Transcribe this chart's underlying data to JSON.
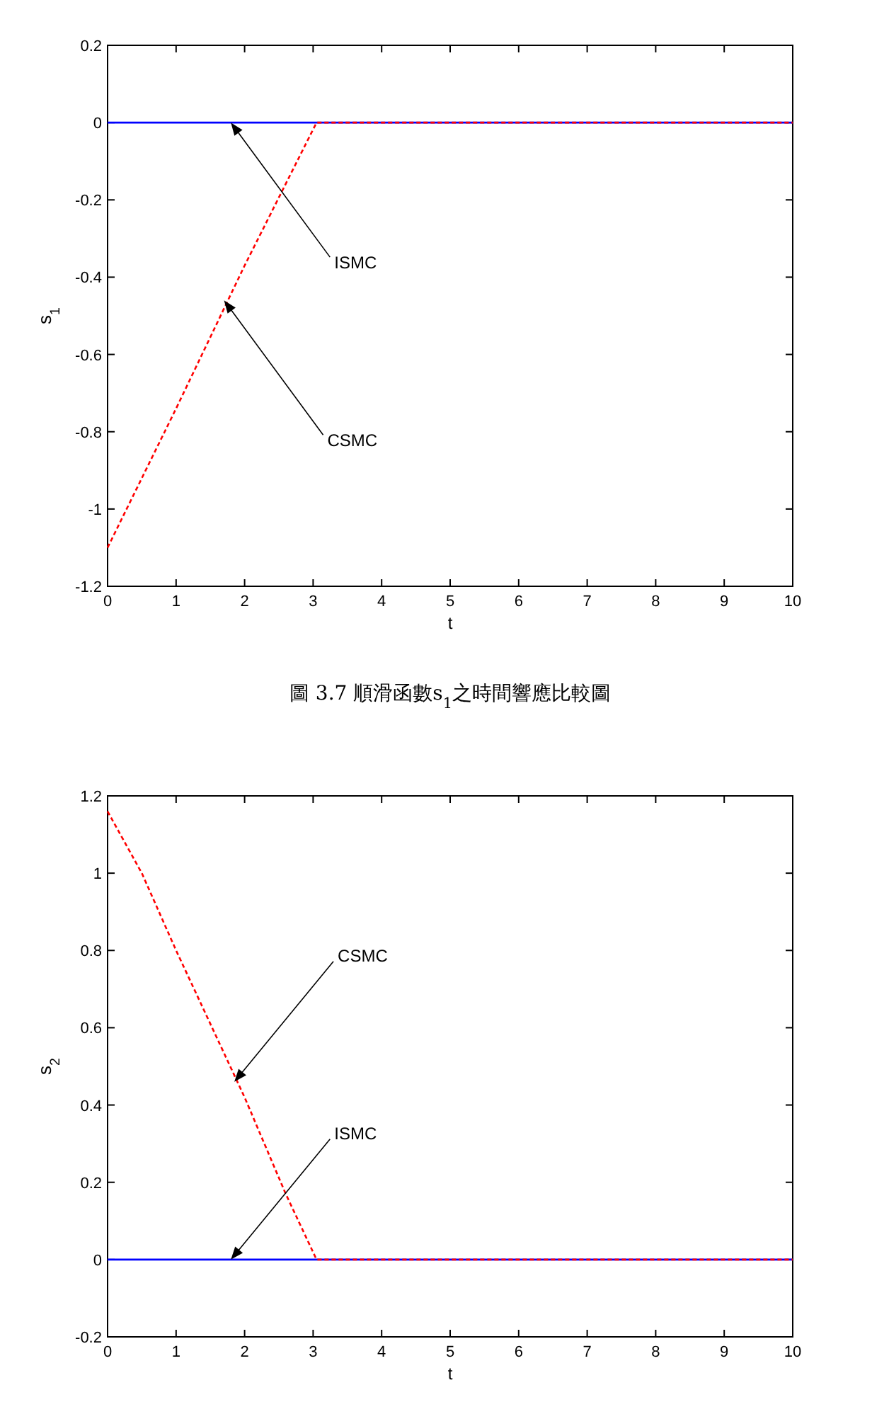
{
  "chart_data": [
    {
      "type": "line",
      "xlabel": "t",
      "ylabel": "s$_{1}$",
      "xlim": [
        0,
        10
      ],
      "ylim": [
        -1.2,
        0.2
      ],
      "xticks": [
        0,
        1,
        2,
        3,
        4,
        5,
        6,
        7,
        8,
        9,
        10
      ],
      "yticks": [
        0.2,
        0,
        -0.2,
        -0.4,
        -0.6,
        -0.8,
        -1,
        -1.2
      ],
      "series": [
        {
          "color": "#ff0000",
          "line_style": "dashed",
          "x": [
            0,
            1,
            2,
            3.05,
            10
          ],
          "values": [
            -1.1,
            -0.74,
            -0.37,
            0,
            0
          ]
        },
        {
          "color": "#0000ff",
          "line_style": "solid",
          "x": [
            0,
            10
          ],
          "values": [
            0,
            0
          ]
        }
      ],
      "annotations": [
        {
          "text": "ISMC",
          "x": 1.8,
          "y": 0
        },
        {
          "text": "CSMC",
          "x": 1.7,
          "y": -0.46
        },
        "圖 3.7 順滑函數s$_{1}$之時間響應比較圖"
      ]
    },
    {
      "type": "line",
      "xlabel": "t",
      "ylabel": "s$_{2}$",
      "xlim": [
        0,
        10
      ],
      "ylim": [
        -0.2,
        1.2
      ],
      "xticks": [
        0,
        1,
        2,
        3,
        4,
        5,
        6,
        7,
        8,
        9,
        10
      ],
      "yticks": [
        1.2,
        1,
        0.8,
        0.6,
        0.4,
        0.2,
        0,
        -0.2
      ],
      "series": [
        {
          "color": "#ff0000",
          "line_style": "dashed",
          "x": [
            0,
            0.5,
            1,
            2,
            2.6,
            3.05,
            10
          ],
          "values": [
            1.16,
            1.0,
            0.8,
            0.42,
            0.17,
            0,
            0
          ]
        },
        {
          "color": "#0000ff",
          "line_style": "solid",
          "x": [
            0,
            10
          ],
          "values": [
            0,
            0
          ]
        }
      ],
      "annotations": [
        {
          "text": "CSMC",
          "x": 1.85,
          "y": 0.46
        },
        {
          "text": "ISMC",
          "x": 1.8,
          "y": 0
        }
      ]
    }
  ]
}
